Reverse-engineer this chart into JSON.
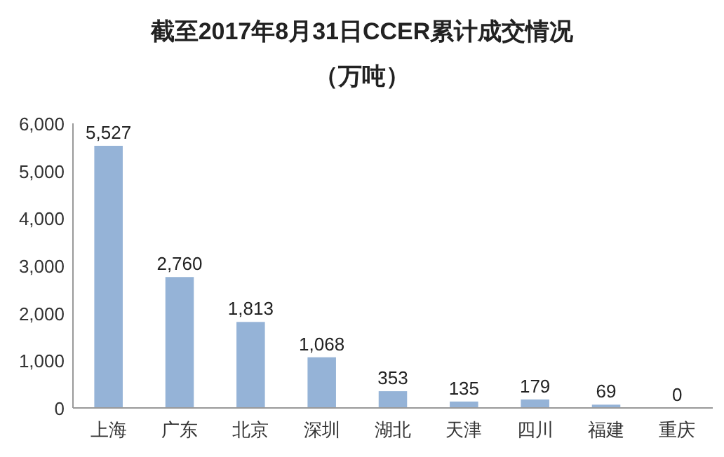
{
  "chart_data": {
    "type": "bar",
    "title": "截至2017年8月31日CCER累计成交情况",
    "subtitle": "（万吨）",
    "categories": [
      "上海",
      "广东",
      "北京",
      "深圳",
      "湖北",
      "天津",
      "四川",
      "福建",
      "重庆"
    ],
    "values": [
      5527,
      2760,
      1813,
      1068,
      353,
      135,
      179,
      69,
      0
    ],
    "value_labels": [
      "5,527",
      "2,760",
      "1,813",
      "1,068",
      "353",
      "135",
      "179",
      "69",
      "0"
    ],
    "color": "#95b3d7",
    "ylim": [
      0,
      6000
    ],
    "yticks": [
      {
        "value": 0,
        "label": "0"
      },
      {
        "value": 1000,
        "label": "1,000"
      },
      {
        "value": 2000,
        "label": "2,000"
      },
      {
        "value": 3000,
        "label": "3,000"
      },
      {
        "value": 4000,
        "label": "4,000"
      },
      {
        "value": 5000,
        "label": "5,000"
      },
      {
        "value": 6000,
        "label": "6,000"
      }
    ],
    "grid": false
  }
}
